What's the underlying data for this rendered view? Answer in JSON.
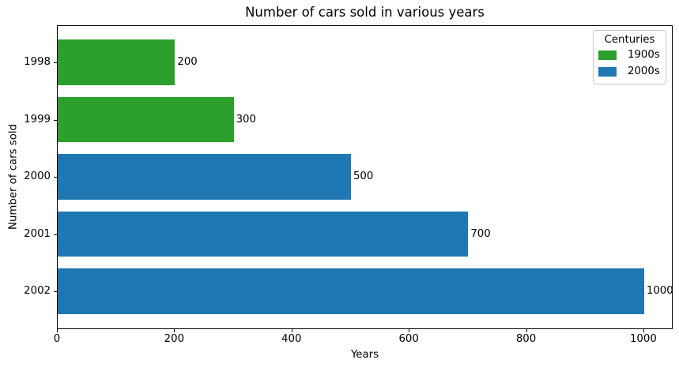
{
  "chart_data": {
    "type": "bar",
    "orientation": "horizontal",
    "title": "Number of cars sold in various years",
    "xlabel": "Years",
    "ylabel": "Number of cars sold",
    "categories": [
      "1998",
      "1999",
      "2000",
      "2001",
      "2002"
    ],
    "values": [
      200,
      300,
      500,
      700,
      1000
    ],
    "value_labels": [
      "200",
      "300",
      "500",
      "700",
      "1000"
    ],
    "bar_colors": [
      "#2ca02c",
      "#2ca02c",
      "#1f77b4",
      "#1f77b4",
      "#1f77b4"
    ],
    "x_ticks": [
      0,
      200,
      400,
      600,
      800,
      1000
    ],
    "x_tick_labels": [
      "0",
      "200",
      "400",
      "600",
      "800",
      "1000"
    ],
    "xlim": [
      0,
      1050
    ],
    "grid": false,
    "legend": {
      "title": "Centuries",
      "position": "upper right",
      "entries": [
        {
          "label": "1900s",
          "color": "#2ca02c"
        },
        {
          "label": "2000s",
          "color": "#1f77b4"
        }
      ]
    }
  }
}
